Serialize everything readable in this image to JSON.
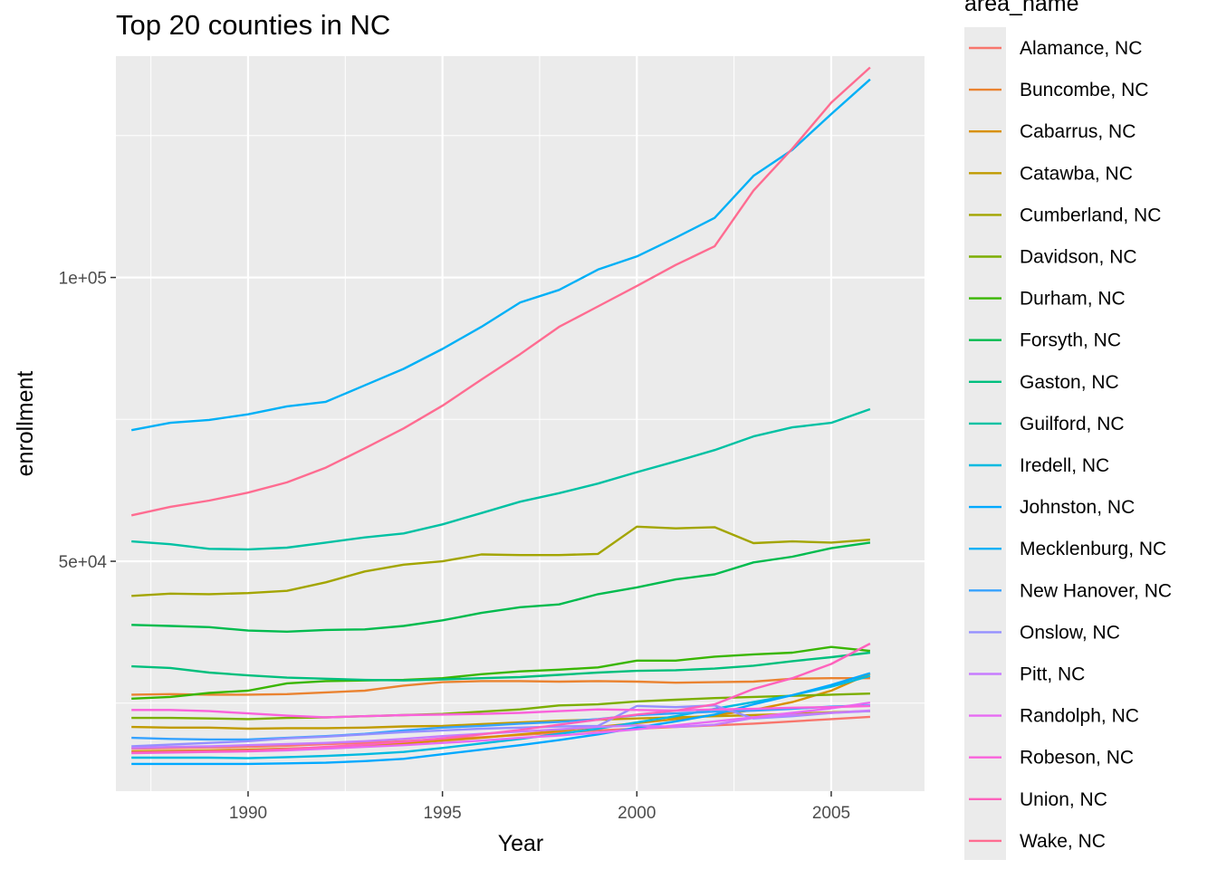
{
  "chart_data": {
    "type": "line",
    "title": "Top 20 counties in NC",
    "xlabel": "Year",
    "ylabel": "enrollment",
    "legend_title": "area_name",
    "legend_position": "right",
    "grid": true,
    "xlim": [
      1986.6,
      2007.4
    ],
    "ylim": [
      9500,
      139000
    ],
    "x_ticks": [
      1990,
      1995,
      2000,
      2005
    ],
    "x_tick_labels": [
      "1990",
      "1995",
      "2000",
      "2005"
    ],
    "y_ticks": [
      50000,
      100000
    ],
    "y_tick_labels": [
      "5e+04",
      "1e+05"
    ],
    "x": [
      1987,
      1988,
      1989,
      1990,
      1991,
      1992,
      1993,
      1994,
      1995,
      1996,
      1997,
      1998,
      1999,
      2000,
      2001,
      2002,
      2003,
      2004,
      2005,
      2006
    ],
    "series": [
      {
        "name": "Alamance, NC",
        "color": "#F8766D",
        "values": [
          17000,
          17100,
          17200,
          17300,
          17500,
          17800,
          18000,
          18300,
          18700,
          19000,
          19400,
          19800,
          20200,
          20500,
          20800,
          21100,
          21400,
          21800,
          22200,
          22600
        ]
      },
      {
        "name": "Buncombe, NC",
        "color": "#EA8331",
        "values": [
          26500,
          26600,
          26500,
          26500,
          26600,
          26900,
          27200,
          28100,
          28700,
          28900,
          28900,
          28800,
          28900,
          28800,
          28600,
          28700,
          28800,
          29300,
          29400,
          29400
        ]
      },
      {
        "name": "Cabarrus, NC",
        "color": "#D89000",
        "values": [
          16500,
          16600,
          16700,
          16800,
          17000,
          17200,
          17500,
          17900,
          18400,
          18900,
          19500,
          20100,
          20800,
          21500,
          22200,
          22900,
          23800,
          25200,
          27200,
          30200
        ]
      },
      {
        "name": "Catawba, NC",
        "color": "#C09B00",
        "values": [
          20800,
          20700,
          20700,
          20500,
          20600,
          20600,
          20700,
          20900,
          21000,
          21300,
          21600,
          21900,
          22100,
          22300,
          22500,
          22700,
          22900,
          23100,
          23400,
          23600
        ]
      },
      {
        "name": "Cumberland, NC",
        "color": "#A3A500",
        "values": [
          43900,
          44300,
          44200,
          44400,
          44800,
          46300,
          48200,
          49400,
          50000,
          51200,
          51100,
          51100,
          51300,
          56100,
          55800,
          56000,
          53200,
          53500,
          53300,
          53800
        ]
      },
      {
        "name": "Davidson, NC",
        "color": "#7CAE00",
        "values": [
          22400,
          22400,
          22300,
          22200,
          22400,
          22500,
          22700,
          22900,
          23100,
          23500,
          23900,
          24600,
          24800,
          25300,
          25600,
          25900,
          26100,
          26300,
          26500,
          26700
        ]
      },
      {
        "name": "Durham, NC",
        "color": "#39B600",
        "values": [
          25800,
          26100,
          26800,
          27200,
          28500,
          28900,
          29000,
          29100,
          29400,
          30100,
          30600,
          30900,
          31300,
          32500,
          32500,
          33200,
          33600,
          33900,
          34900,
          34200
        ]
      },
      {
        "name": "Forsyth, NC",
        "color": "#00BB4E",
        "values": [
          38800,
          38600,
          38400,
          37800,
          37600,
          37900,
          38000,
          38600,
          39600,
          40900,
          41900,
          42400,
          44200,
          45400,
          46800,
          47700,
          49800,
          50800,
          52300,
          53300
        ]
      },
      {
        "name": "Gaston, NC",
        "color": "#00BF7D",
        "values": [
          31500,
          31200,
          30400,
          29900,
          29500,
          29300,
          29100,
          29000,
          29200,
          29400,
          29600,
          30000,
          30400,
          30700,
          30800,
          31100,
          31600,
          32400,
          33100,
          33900
        ]
      },
      {
        "name": "Guilford, NC",
        "color": "#00C1A3",
        "values": [
          53500,
          53000,
          52200,
          52100,
          52400,
          53300,
          54200,
          54900,
          56500,
          58500,
          60500,
          62000,
          63700,
          65700,
          67600,
          69600,
          72000,
          73600,
          74400,
          76800
        ]
      },
      {
        "name": "Iredell, NC",
        "color": "#00BAE0",
        "values": [
          15400,
          15400,
          15400,
          15300,
          15500,
          15700,
          16000,
          16400,
          17100,
          17900,
          18700,
          19600,
          20500,
          21600,
          22700,
          24000,
          25200,
          26400,
          27900,
          29800
        ]
      },
      {
        "name": "Johnston, NC",
        "color": "#00A9FF",
        "values": [
          14300,
          14300,
          14300,
          14300,
          14400,
          14500,
          14800,
          15200,
          16000,
          16800,
          17600,
          18500,
          19500,
          20700,
          21800,
          23000,
          24800,
          26400,
          28200,
          30300
        ]
      },
      {
        "name": "Mecklenburg, NC",
        "color": "#00B0F6",
        "values": [
          73100,
          74400,
          74900,
          75900,
          77300,
          78100,
          81000,
          83900,
          87400,
          91300,
          95600,
          97800,
          101400,
          103700,
          107000,
          110500,
          117900,
          122500,
          128800,
          134900
        ]
      },
      {
        "name": "New Hanover, NC",
        "color": "#35A2FF",
        "values": [
          18900,
          18700,
          18600,
          18600,
          18900,
          19200,
          19600,
          20200,
          20700,
          21000,
          21400,
          21700,
          22200,
          22900,
          23200,
          23500,
          23700,
          24000,
          24400,
          24600
        ]
      },
      {
        "name": "Onslow, NC",
        "color": "#9590FF",
        "values": [
          17400,
          17700,
          18000,
          18300,
          18800,
          19100,
          19500,
          19900,
          20200,
          20500,
          20700,
          20900,
          21000,
          24500,
          24300,
          24600,
          22300,
          22700,
          23300,
          23600
        ]
      },
      {
        "name": "Pitt, NC",
        "color": "#C77CFF",
        "values": [
          17100,
          17300,
          17400,
          17600,
          17800,
          18000,
          18300,
          18700,
          19200,
          19600,
          20000,
          20400,
          20800,
          21100,
          20800,
          21200,
          22400,
          22900,
          23300,
          23700
        ]
      },
      {
        "name": "Randolph, NC",
        "color": "#E76BF3",
        "values": [
          16200,
          16300,
          16400,
          16500,
          16700,
          17000,
          17300,
          17600,
          18000,
          18400,
          18900,
          19300,
          19800,
          20400,
          21100,
          21800,
          22500,
          23300,
          24100,
          25100
        ]
      },
      {
        "name": "Robeson, NC",
        "color": "#FA62DB",
        "values": [
          23800,
          23800,
          23600,
          23200,
          22800,
          22500,
          22700,
          22900,
          23000,
          23100,
          23300,
          23600,
          23900,
          23800,
          23700,
          23900,
          24000,
          24200,
          24300,
          24500
        ]
      },
      {
        "name": "Union, NC",
        "color": "#FF62BC",
        "values": [
          16300,
          16400,
          16500,
          16600,
          16900,
          17300,
          17700,
          18200,
          18800,
          19500,
          20300,
          21200,
          22100,
          23000,
          23700,
          24800,
          27500,
          29400,
          31900,
          35500
        ]
      },
      {
        "name": "Wake, NC",
        "color": "#FF6C91",
        "values": [
          58100,
          59600,
          60700,
          62100,
          63900,
          66500,
          69900,
          73400,
          77400,
          82000,
          86500,
          91300,
          94900,
          98500,
          102200,
          105500,
          115300,
          122700,
          130800,
          137000
        ]
      }
    ]
  }
}
